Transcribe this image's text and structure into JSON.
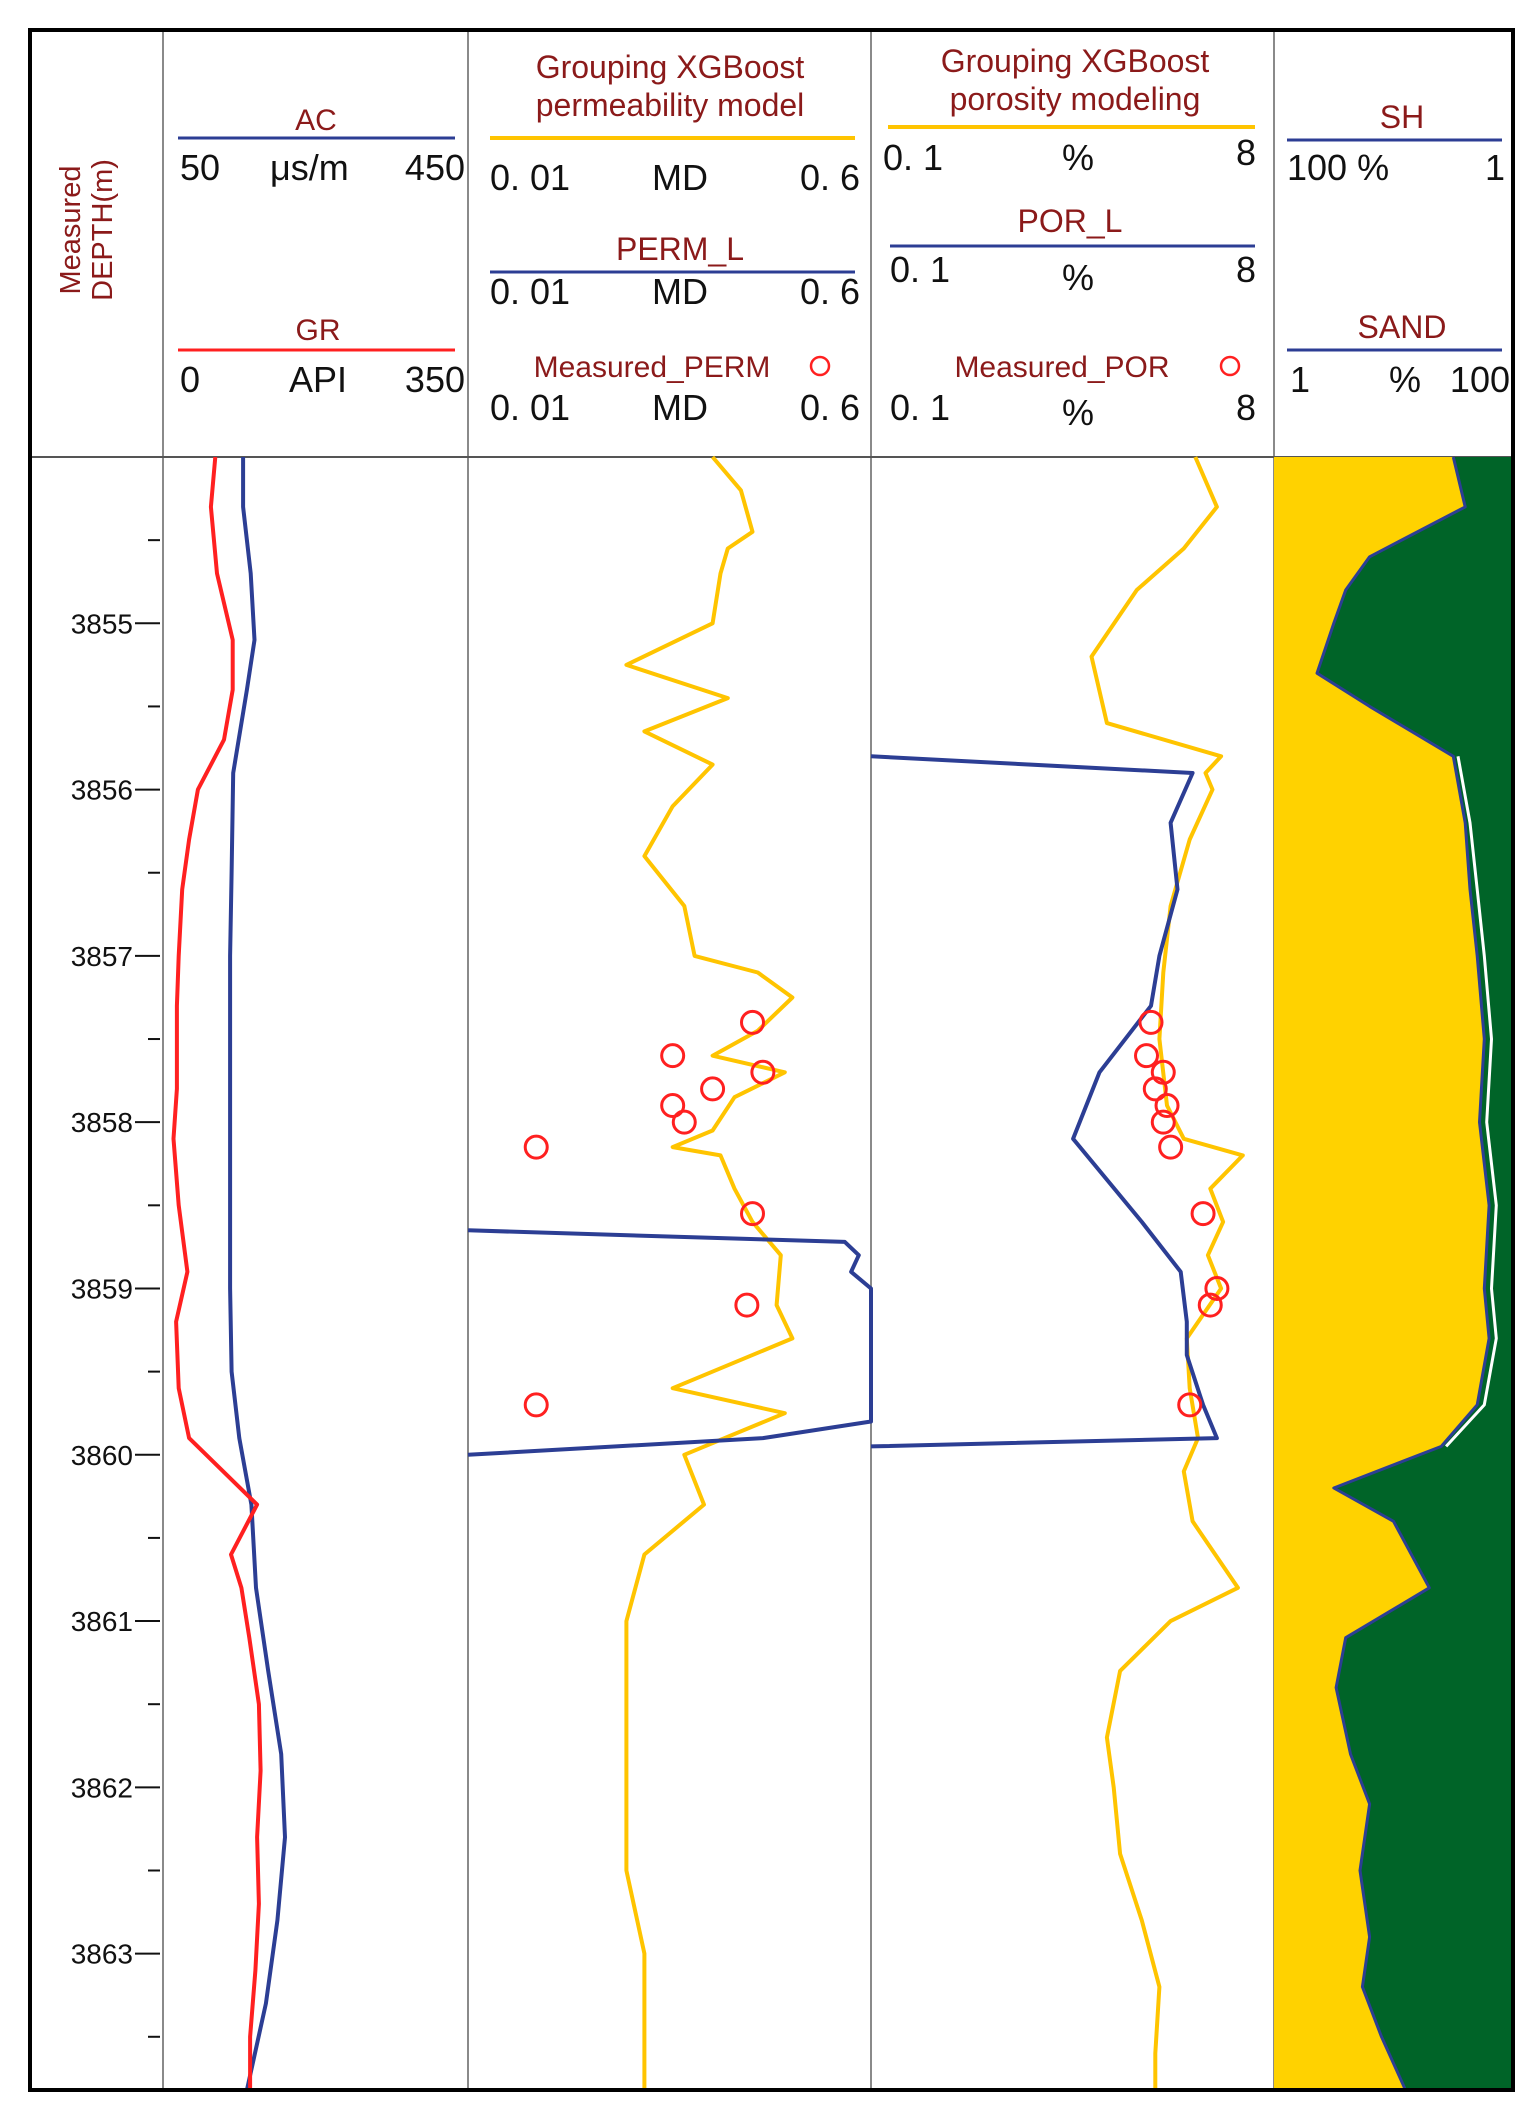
{
  "chart_data": {
    "type": "line",
    "depth_axis": {
      "label_line1": "Measured",
      "label_line2": "DEPTH(m)",
      "range": [
        3854.0,
        3863.82
      ],
      "major_ticks": [
        "3855",
        "3856",
        "3857",
        "3858",
        "3859",
        "3860",
        "3861",
        "3862",
        "3863"
      ],
      "minor_ticks": [
        3854.5,
        3855.5,
        3856.5,
        3857.5,
        3858.5,
        3859.5,
        3860.5,
        3861.5,
        3862.5,
        3863.5
      ]
    },
    "colors": {
      "gr": "#ff2020",
      "ac": "#2c3e94",
      "model": "#ffc400",
      "perm_l": "#2c3e94",
      "measured": "#ff2020",
      "sand_fill": "#ffd200",
      "shale_fill": "#006428",
      "title_red": "#8b1a1a"
    },
    "tracks": [
      {
        "id": "gr-ac",
        "curves": [
          {
            "key": "ac",
            "name": "AC",
            "unit": "μs/m",
            "min": "50",
            "max": "450",
            "range": [
              50,
              450
            ],
            "points": [
              [
                3854.0,
                155
              ],
              [
                3854.3,
                155
              ],
              [
                3854.7,
                165
              ],
              [
                3855.1,
                170
              ],
              [
                3855.4,
                160
              ],
              [
                3855.9,
                142
              ],
              [
                3856.5,
                140
              ],
              [
                3857.0,
                138
              ],
              [
                3857.5,
                138
              ],
              [
                3858.0,
                138
              ],
              [
                3858.5,
                138
              ],
              [
                3859.0,
                138
              ],
              [
                3859.5,
                140
              ],
              [
                3859.9,
                150
              ],
              [
                3860.3,
                166
              ],
              [
                3860.8,
                172
              ],
              [
                3861.3,
                188
              ],
              [
                3861.8,
                205
              ],
              [
                3862.3,
                210
              ],
              [
                3862.8,
                200
              ],
              [
                3863.3,
                185
              ],
              [
                3863.82,
                160
              ]
            ]
          },
          {
            "key": "gr",
            "name": "GR",
            "unit": "API",
            "min": "0",
            "max": "350",
            "range": [
              0,
              350
            ],
            "points": [
              [
                3854.0,
                60
              ],
              [
                3854.3,
                55
              ],
              [
                3854.7,
                62
              ],
              [
                3855.1,
                80
              ],
              [
                3855.4,
                80
              ],
              [
                3855.7,
                70
              ],
              [
                3856.0,
                40
              ],
              [
                3856.3,
                30
              ],
              [
                3856.6,
                22
              ],
              [
                3857.0,
                18
              ],
              [
                3857.3,
                16
              ],
              [
                3857.8,
                16
              ],
              [
                3858.1,
                12
              ],
              [
                3858.5,
                18
              ],
              [
                3858.9,
                28
              ],
              [
                3859.2,
                15
              ],
              [
                3859.6,
                18
              ],
              [
                3859.9,
                30
              ],
              [
                3860.3,
                108
              ],
              [
                3860.6,
                78
              ],
              [
                3860.8,
                90
              ],
              [
                3861.1,
                99
              ],
              [
                3861.5,
                110
              ],
              [
                3861.9,
                112
              ],
              [
                3862.3,
                108
              ],
              [
                3862.7,
                110
              ],
              [
                3863.1,
                106
              ],
              [
                3863.5,
                100
              ],
              [
                3863.82,
                100
              ]
            ]
          }
        ]
      },
      {
        "id": "perm",
        "header_title_line1": "Grouping XGBoost",
        "header_title_line2": "permeability model",
        "model_range": {
          "min": "0. 01",
          "unit": "MD",
          "max": "0. 6"
        },
        "perm_l_title": "PERM_L",
        "perm_l_range": {
          "min": "0. 01",
          "unit": "MD",
          "max": "0. 6"
        },
        "measured_title": "Measured_PERM",
        "measured_range": {
          "min": "0. 01",
          "unit": "MD",
          "max": "0. 6"
        },
        "axis_range": [
          0.01,
          0.6
        ],
        "model_points": [
          [
            3854.0,
            0.12
          ],
          [
            3854.2,
            0.16
          ],
          [
            3854.45,
            0.18
          ],
          [
            3854.55,
            0.14
          ],
          [
            3854.7,
            0.13
          ],
          [
            3855.0,
            0.12
          ],
          [
            3855.25,
            0.05
          ],
          [
            3855.45,
            0.14
          ],
          [
            3855.65,
            0.06
          ],
          [
            3855.85,
            0.12
          ],
          [
            3856.1,
            0.08
          ],
          [
            3856.4,
            0.06
          ],
          [
            3856.7,
            0.09
          ],
          [
            3857.0,
            0.1
          ],
          [
            3857.1,
            0.19
          ],
          [
            3857.25,
            0.27
          ],
          [
            3857.45,
            0.19
          ],
          [
            3857.6,
            0.12
          ],
          [
            3857.7,
            0.25
          ],
          [
            3857.85,
            0.15
          ],
          [
            3858.05,
            0.12
          ],
          [
            3858.15,
            0.08
          ],
          [
            3858.2,
            0.13
          ],
          [
            3858.4,
            0.15
          ],
          [
            3858.6,
            0.18
          ],
          [
            3858.8,
            0.24
          ],
          [
            3859.1,
            0.23
          ],
          [
            3859.3,
            0.27
          ],
          [
            3859.6,
            0.08
          ],
          [
            3859.75,
            0.25
          ],
          [
            3860.0,
            0.09
          ],
          [
            3860.3,
            0.11
          ],
          [
            3860.6,
            0.06
          ],
          [
            3861.0,
            0.05
          ],
          [
            3861.5,
            0.05
          ],
          [
            3862.0,
            0.05
          ],
          [
            3862.5,
            0.05
          ],
          [
            3863.0,
            0.06
          ],
          [
            3863.82,
            0.06
          ]
        ],
        "perm_l_points": [
          [
            3858.65,
            0.01
          ],
          [
            3858.72,
            0.46
          ],
          [
            3858.8,
            0.53
          ],
          [
            3858.9,
            0.49
          ],
          [
            3859.0,
            0.6
          ],
          [
            3859.8,
            0.6
          ],
          [
            3859.9,
            0.2
          ],
          [
            3860.0,
            0.01
          ]
        ],
        "measured_points": [
          [
            3857.4,
            0.18
          ],
          [
            3857.6,
            0.08
          ],
          [
            3857.7,
            0.2
          ],
          [
            3857.8,
            0.12
          ],
          [
            3857.9,
            0.08
          ],
          [
            3858.0,
            0.09
          ],
          [
            3858.15,
            0.02
          ],
          [
            3858.55,
            0.18
          ],
          [
            3859.1,
            0.17
          ],
          [
            3859.7,
            0.02
          ]
        ]
      },
      {
        "id": "por",
        "header_title_line1": "Grouping XGBoost",
        "header_title_line2": "porosity modeling",
        "model_range": {
          "min": "0. 1",
          "unit": "%",
          "max": "8"
        },
        "por_l_title": "POR_L",
        "por_l_range": {
          "min": "0. 1",
          "unit": "%",
          "max": "8"
        },
        "measured_title": "Measured_POR",
        "measured_range": {
          "min": "0. 1",
          "unit": "%",
          "max": "8"
        },
        "axis_range": [
          0.1,
          8
        ],
        "model_points": [
          [
            3854.0,
            3.4
          ],
          [
            3854.3,
            4.3
          ],
          [
            3854.55,
            3.0
          ],
          [
            3854.8,
            1.8
          ],
          [
            3855.2,
            1.1
          ],
          [
            3855.6,
            1.3
          ],
          [
            3855.8,
            4.5
          ],
          [
            3855.9,
            3.8
          ],
          [
            3856.0,
            4.1
          ],
          [
            3856.3,
            3.2
          ],
          [
            3856.7,
            2.6
          ],
          [
            3857.1,
            2.4
          ],
          [
            3857.5,
            2.3
          ],
          [
            3857.9,
            2.5
          ],
          [
            3858.1,
            3.0
          ],
          [
            3858.2,
            5.7
          ],
          [
            3858.4,
            4.0
          ],
          [
            3858.6,
            4.6
          ],
          [
            3858.8,
            3.9
          ],
          [
            3859.0,
            4.5
          ],
          [
            3859.3,
            3.1
          ],
          [
            3859.6,
            3.2
          ],
          [
            3859.9,
            3.5
          ],
          [
            3860.1,
            3.0
          ],
          [
            3860.4,
            3.3
          ],
          [
            3860.8,
            5.4
          ],
          [
            3861.0,
            2.6
          ],
          [
            3861.3,
            1.5
          ],
          [
            3861.7,
            1.3
          ],
          [
            3862.0,
            1.4
          ],
          [
            3862.4,
            1.5
          ],
          [
            3862.8,
            1.9
          ],
          [
            3863.2,
            2.3
          ],
          [
            3863.6,
            2.2
          ],
          [
            3863.82,
            2.2
          ]
        ],
        "por_l_points": [
          [
            3855.8,
            0.1
          ],
          [
            3855.9,
            3.3
          ],
          [
            3856.2,
            2.6
          ],
          [
            3856.6,
            2.8
          ],
          [
            3857.0,
            2.3
          ],
          [
            3857.3,
            2.1
          ],
          [
            3857.7,
            1.2
          ],
          [
            3858.1,
            0.9
          ],
          [
            3858.6,
            1.9
          ],
          [
            3858.9,
            2.9
          ],
          [
            3859.2,
            3.1
          ],
          [
            3859.4,
            3.1
          ],
          [
            3859.7,
            3.7
          ],
          [
            3859.9,
            4.3
          ],
          [
            3859.95,
            0.1
          ]
        ],
        "measured_points": [
          [
            3857.4,
            2.1
          ],
          [
            3857.6,
            2.0
          ],
          [
            3857.7,
            2.4
          ],
          [
            3857.8,
            2.2
          ],
          [
            3857.9,
            2.5
          ],
          [
            3858.0,
            2.4
          ],
          [
            3858.15,
            2.6
          ],
          [
            3858.55,
            3.7
          ],
          [
            3859.0,
            4.3
          ],
          [
            3859.1,
            4.0
          ],
          [
            3859.7,
            3.2
          ]
        ]
      },
      {
        "id": "sh-sand",
        "sh_title": "SH",
        "sh_range": {
          "min": "100 %",
          "max": "1"
        },
        "sand_title": "SAND",
        "sand_range": {
          "min": "1",
          "unit": "%",
          "max": "100"
        },
        "boundary_points": [
          [
            3854.0,
            75
          ],
          [
            3854.3,
            80
          ],
          [
            3854.6,
            40
          ],
          [
            3854.8,
            30
          ],
          [
            3855.0,
            25
          ],
          [
            3855.3,
            18
          ],
          [
            3855.5,
            40
          ],
          [
            3855.8,
            75
          ],
          [
            3856.2,
            80
          ],
          [
            3856.6,
            82
          ],
          [
            3857.0,
            85
          ],
          [
            3857.5,
            88
          ],
          [
            3858.0,
            86
          ],
          [
            3858.5,
            90
          ],
          [
            3859.0,
            88
          ],
          [
            3859.3,
            90
          ],
          [
            3859.7,
            85
          ],
          [
            3859.95,
            70
          ],
          [
            3860.2,
            25
          ],
          [
            3860.4,
            50
          ],
          [
            3860.8,
            65
          ],
          [
            3861.1,
            30
          ],
          [
            3861.4,
            26
          ],
          [
            3861.8,
            32
          ],
          [
            3862.1,
            40
          ],
          [
            3862.5,
            36
          ],
          [
            3862.9,
            40
          ],
          [
            3863.2,
            37
          ],
          [
            3863.5,
            45
          ],
          [
            3863.82,
            55
          ]
        ],
        "white_line_points": [
          [
            3855.8,
            77
          ],
          [
            3856.2,
            82
          ],
          [
            3856.6,
            85
          ],
          [
            3857.0,
            88
          ],
          [
            3857.5,
            91
          ],
          [
            3858.0,
            89
          ],
          [
            3858.5,
            93
          ],
          [
            3859.0,
            91
          ],
          [
            3859.3,
            93
          ],
          [
            3859.7,
            88
          ],
          [
            3859.95,
            72
          ]
        ]
      }
    ]
  }
}
